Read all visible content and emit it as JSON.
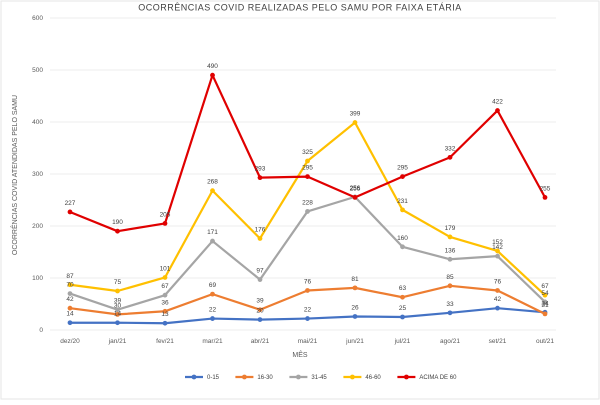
{
  "chart_data": {
    "type": "line",
    "title": "OCORRÊNCIAS COVID REALIZADAS PELO SAMU POR FAIXA ETÁRIA",
    "xlabel": "MÊS",
    "ylabel": "OCORRÊNCIAS COVID ATENDIDAS PELO SAMU",
    "ylim": [
      0,
      600
    ],
    "yticks": [
      "0",
      "100",
      "200",
      "300",
      "400",
      "500",
      "600"
    ],
    "grid": true,
    "legend_position": "bottom",
    "categories": [
      "dez/20",
      "jan/21",
      "fev/21",
      "mar/21",
      "abr/21",
      "mai/21",
      "jun/21",
      "jul/21",
      "ago/21",
      "set/21",
      "out/21"
    ],
    "series": [
      {
        "name": "0-15",
        "color": "#4472c4",
        "values": [
          14,
          14,
          13,
          22,
          20,
          22,
          26,
          25,
          33,
          42,
          34
        ]
      },
      {
        "name": "16-30",
        "color": "#ed7d31",
        "values": [
          42,
          30,
          36,
          69,
          39,
          76,
          81,
          63,
          85,
          76,
          31
        ]
      },
      {
        "name": "31-45",
        "color": "#a5a5a5",
        "values": [
          70,
          39,
          67,
          171,
          97,
          228,
          256,
          160,
          136,
          142,
          54
        ]
      },
      {
        "name": "46-60",
        "color": "#ffc000",
        "values": [
          87,
          75,
          101,
          268,
          176,
          325,
          399,
          231,
          179,
          152,
          67
        ]
      },
      {
        "name": "ACIMA DE 60",
        "color": "#e00000",
        "values": [
          227,
          190,
          205,
          490,
          293,
          295,
          255,
          295,
          332,
          422,
          255
        ]
      }
    ]
  }
}
